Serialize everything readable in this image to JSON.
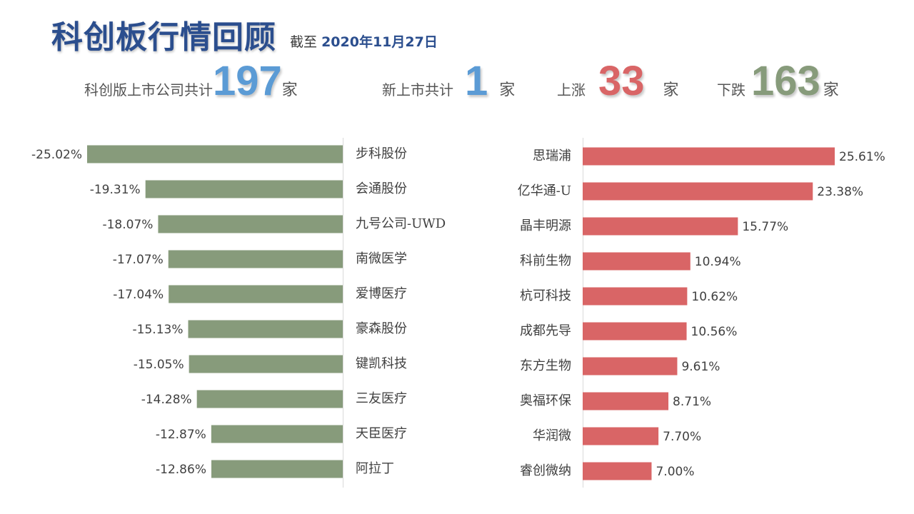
{
  "header": {
    "title": "科创板行情回顾",
    "asof_prefix": "截至",
    "asof_date": "2020年11月27日"
  },
  "stats": {
    "total_label": "科创版上市公司共计",
    "total_value": "197",
    "total_unit": "家",
    "new_label": "新上市共计",
    "new_value": "1",
    "new_unit": "家",
    "up_label": "上涨",
    "up_value": "33",
    "up_unit": "家",
    "down_label": "下跌",
    "down_value": "163",
    "down_unit": "家"
  },
  "colors": {
    "title": "#2B4E8E",
    "blue_number": "#5B9BD5",
    "red_number": "#D96566",
    "green_number": "#879B7B",
    "loss_bar": "#879B7B",
    "gain_bar": "#D96566",
    "axis": "#d9d9d9"
  },
  "chart_data": [
    {
      "type": "bar",
      "orientation": "horizontal",
      "direction": "losers",
      "categories": [
        "步科股份",
        "会通股份",
        "九号公司-UWD",
        "南微医学",
        "爱博医疗",
        "豪森股份",
        "键凯科技",
        "三友医疗",
        "天臣医疗",
        "阿拉丁"
      ],
      "values": [
        -25.02,
        -19.31,
        -18.07,
        -17.07,
        -17.04,
        -15.13,
        -15.05,
        -14.28,
        -12.87,
        -12.86
      ],
      "labels": [
        "-25.02%",
        "-19.31%",
        "-18.07%",
        "-17.07%",
        "-17.04%",
        "-15.13%",
        "-15.05%",
        "-14.28%",
        "-12.87%",
        "-12.86%"
      ],
      "xlim": [
        -25.02,
        0
      ],
      "grid": false,
      "color": "#879B7B"
    },
    {
      "type": "bar",
      "orientation": "horizontal",
      "direction": "gainers",
      "categories": [
        "思瑞浦",
        "亿华通-U",
        "晶丰明源",
        "科前生物",
        "杭可科技",
        "成都先导",
        "东方生物",
        "奥福环保",
        "华润微",
        "睿创微纳"
      ],
      "values": [
        25.61,
        23.38,
        15.77,
        10.94,
        10.62,
        10.56,
        9.61,
        8.71,
        7.7,
        7.0
      ],
      "labels": [
        "25.61%",
        "23.38%",
        "15.77%",
        "10.94%",
        "10.62%",
        "10.56%",
        "9.61%",
        "8.71%",
        "7.70%",
        "7.00%"
      ],
      "xlim": [
        0,
        25.61
      ],
      "grid": false,
      "color": "#D96566"
    }
  ]
}
